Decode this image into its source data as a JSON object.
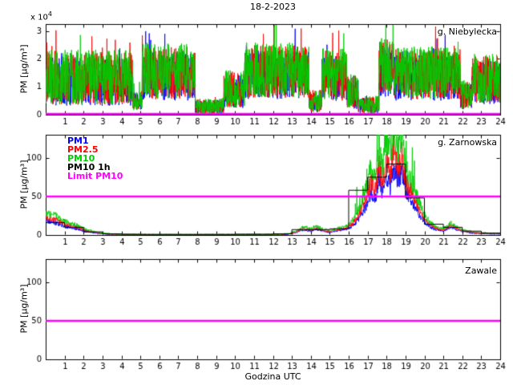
{
  "figure": {
    "title": "18-2-2023",
    "xlabel": "Godzina UTC",
    "ylabel": "PM [µg/m³]",
    "exp_label": "x 10",
    "exp_power": "4",
    "background": "#ffffff"
  },
  "legend": {
    "items": [
      {
        "label": "PM1",
        "color": "#0000ff"
      },
      {
        "label": "PM2.5",
        "color": "#ff0000"
      },
      {
        "label": "PM10",
        "color": "#00cc00"
      },
      {
        "label": "PM10 1h",
        "color": "#000000"
      },
      {
        "label": "Limit PM10",
        "color": "#ff00ff"
      }
    ]
  },
  "chart_data": [
    {
      "name": "niebylecka",
      "type": "line",
      "annotation": "g. Niebylecka",
      "x_range": [
        0,
        24
      ],
      "x_ticks": [
        1,
        2,
        3,
        4,
        5,
        6,
        7,
        8,
        9,
        10,
        11,
        12,
        13,
        14,
        15,
        16,
        17,
        18,
        19,
        20,
        21,
        22,
        23,
        24
      ],
      "y_lim": [
        0,
        32500
      ],
      "y_ticks": [
        0,
        10000,
        20000,
        30000
      ],
      "y_tick_labels": [
        "0",
        "1",
        "2",
        "3"
      ],
      "y_scale_note": "values shown divided by 10^4",
      "limit_value": 50,
      "limit_color": "#ff00ff",
      "noise_envelope_segments": [
        [
          0,
          4.6,
          13000,
          9500
        ],
        [
          4.6,
          5.1,
          5000,
          3500
        ],
        [
          5.1,
          7.9,
          15000,
          9500
        ],
        [
          7.9,
          9.4,
          3000,
          2800
        ],
        [
          9.4,
          10.5,
          9000,
          6500
        ],
        [
          10.5,
          13.9,
          15500,
          9500
        ],
        [
          13.9,
          14.6,
          5000,
          4000
        ],
        [
          14.6,
          15.9,
          14000,
          9000
        ],
        [
          15.9,
          16.5,
          8000,
          6000
        ],
        [
          16.5,
          17.6,
          3500,
          3000
        ],
        [
          17.6,
          18.4,
          17000,
          10000
        ],
        [
          18.4,
          21.9,
          14500,
          9000
        ],
        [
          21.9,
          22.5,
          7000,
          5000
        ],
        [
          22.5,
          24,
          12500,
          8500
        ]
      ],
      "series": [
        {
          "name": "PM1",
          "color": "#0000ff",
          "scale": 0.92,
          "seed": 11
        },
        {
          "name": "PM2.5",
          "color": "#ff0000",
          "scale": 1.0,
          "seed": 23
        },
        {
          "name": "PM10",
          "color": "#00cc00",
          "scale": 1.04,
          "seed": 37
        }
      ]
    },
    {
      "name": "zarnowska",
      "type": "line",
      "annotation": "g. Zarnowska",
      "x_range": [
        0,
        24
      ],
      "x_ticks": [
        1,
        2,
        3,
        4,
        5,
        6,
        7,
        8,
        9,
        10,
        11,
        12,
        13,
        14,
        15,
        16,
        17,
        18,
        19,
        20,
        21,
        22,
        23,
        24
      ],
      "y_lim": [
        0,
        130
      ],
      "y_ticks": [
        0,
        50,
        100
      ],
      "y_tick_labels": [
        "0",
        "50",
        "100"
      ],
      "limit_value": 50,
      "limit_color": "#ff00ff",
      "base_keypoints": [
        [
          0,
          24
        ],
        [
          0.5,
          21
        ],
        [
          1,
          15
        ],
        [
          1.3,
          13
        ],
        [
          1.7,
          10
        ],
        [
          2,
          7
        ],
        [
          2.5,
          4
        ],
        [
          3,
          2
        ],
        [
          3.5,
          1.2
        ],
        [
          4,
          0.8
        ],
        [
          5,
          0.6
        ],
        [
          6,
          0.5
        ],
        [
          8,
          0.5
        ],
        [
          10,
          0.6
        ],
        [
          11,
          0.7
        ],
        [
          12,
          0.8
        ],
        [
          12.8,
          1.5
        ],
        [
          13.2,
          4
        ],
        [
          13.6,
          9
        ],
        [
          14,
          7
        ],
        [
          14.3,
          10
        ],
        [
          14.7,
          6
        ],
        [
          15,
          5
        ],
        [
          15.4,
          7
        ],
        [
          15.8,
          9
        ],
        [
          16.1,
          13
        ],
        [
          16.4,
          22
        ],
        [
          16.7,
          38
        ],
        [
          17,
          55
        ],
        [
          17.2,
          75
        ],
        [
          17.4,
          60
        ],
        [
          17.6,
          95
        ],
        [
          17.8,
          70
        ],
        [
          18,
          105
        ],
        [
          18.2,
          85
        ],
        [
          18.4,
          120
        ],
        [
          18.6,
          90
        ],
        [
          18.8,
          110
        ],
        [
          19,
          75
        ],
        [
          19.2,
          65
        ],
        [
          19.4,
          55
        ],
        [
          19.6,
          42
        ],
        [
          19.8,
          32
        ],
        [
          20,
          22
        ],
        [
          20.3,
          14
        ],
        [
          20.6,
          9
        ],
        [
          21,
          7
        ],
        [
          21.4,
          13
        ],
        [
          21.7,
          9
        ],
        [
          22,
          6
        ],
        [
          22.5,
          3.5
        ],
        [
          23,
          2.5
        ],
        [
          23.5,
          2
        ],
        [
          24,
          1.8
        ]
      ],
      "series": [
        {
          "name": "PM1",
          "color": "#0000ff",
          "factor": 0.75,
          "seed": 5,
          "spikes": false
        },
        {
          "name": "PM2.5",
          "color": "#ff0000",
          "factor": 0.95,
          "seed": 7,
          "spikes": false
        },
        {
          "name": "PM10",
          "color": "#00cc00",
          "factor": 1.2,
          "seed": 9,
          "spikes": true
        }
      ],
      "hourly_series": {
        "name": "PM10 1h",
        "color": "#000000",
        "values": [
          16,
          10,
          4,
          1.5,
          1,
          0.8,
          0.8,
          0.8,
          0.8,
          0.8,
          1,
          1,
          1.5,
          7,
          7,
          8,
          58,
          75,
          92,
          48,
          14,
          10,
          5,
          2.5
        ]
      }
    },
    {
      "name": "zawale",
      "type": "line",
      "annotation": "Zawale",
      "x_range": [
        0,
        24
      ],
      "x_ticks": [
        1,
        2,
        3,
        4,
        5,
        6,
        7,
        8,
        9,
        10,
        11,
        12,
        13,
        14,
        15,
        16,
        17,
        18,
        19,
        20,
        21,
        22,
        23,
        24
      ],
      "y_lim": [
        0,
        130
      ],
      "y_ticks": [
        0,
        50,
        100
      ],
      "y_tick_labels": [
        "0",
        "50",
        "100"
      ],
      "limit_value": 50,
      "limit_color": "#ff00ff",
      "series": []
    }
  ]
}
